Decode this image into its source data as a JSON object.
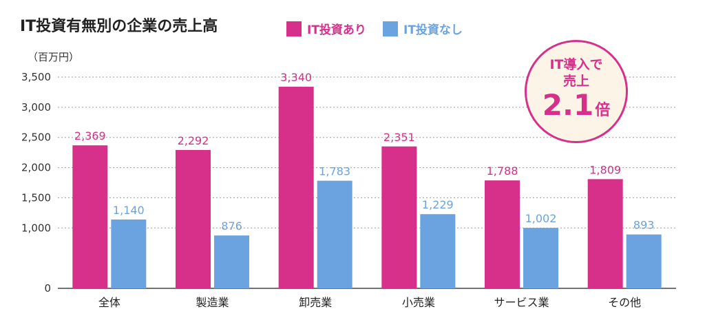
{
  "chart_data": {
    "type": "bar",
    "title": "IT投資有無別の企業の売上高",
    "ylabel": "（百万円）",
    "ylim": [
      0,
      3500
    ],
    "yticks": [
      "0",
      "1,000",
      "1,500",
      "2,000",
      "2,500",
      "3,000",
      "3,500"
    ],
    "ytick_values": [
      0,
      1000,
      1500,
      2000,
      2500,
      3000,
      3500
    ],
    "categories": [
      "全体",
      "製造業",
      "卸売業",
      "小売業",
      "サービス業",
      "その他"
    ],
    "series": [
      {
        "name": "IT投資あり",
        "color": "#d6308b",
        "values": [
          2369,
          2292,
          3340,
          2351,
          1788,
          1809
        ],
        "labels": [
          "2,369",
          "2,292",
          "3,340",
          "2,351",
          "1,788",
          "1,809"
        ]
      },
      {
        "name": "IT投資なし",
        "color": "#6aa3e0",
        "values": [
          1140,
          876,
          1783,
          1229,
          1002,
          893
        ],
        "labels": [
          "1,140",
          "876",
          "1,783",
          "1,229",
          "1,002",
          "893"
        ]
      }
    ],
    "grid": true,
    "legend_position": "top"
  },
  "badge": {
    "line1": "IT導入で",
    "line2": "売上",
    "value": "2.1",
    "suffix": "倍"
  }
}
